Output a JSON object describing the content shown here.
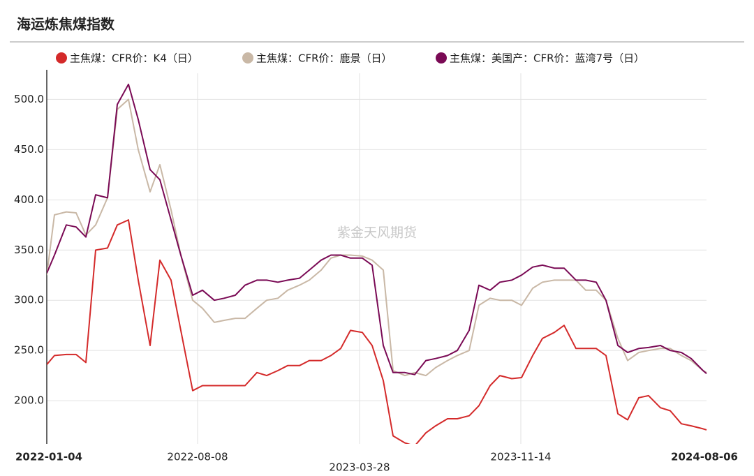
{
  "chart_data": {
    "type": "line",
    "title": "海运炼焦煤指数",
    "watermark": "紫金天风期货",
    "x": [
      "2022-01-04",
      "2022-01-15",
      "2022-02-01",
      "2022-02-15",
      "2022-03-01",
      "2022-03-15",
      "2022-04-01",
      "2022-04-15",
      "2022-05-01",
      "2022-05-15",
      "2022-06-01",
      "2022-06-15",
      "2022-07-01",
      "2022-07-15",
      "2022-08-01",
      "2022-08-15",
      "2022-09-01",
      "2022-09-15",
      "2022-10-01",
      "2022-10-15",
      "2022-11-01",
      "2022-11-15",
      "2022-12-01",
      "2022-12-15",
      "2023-01-01",
      "2023-01-15",
      "2023-02-01",
      "2023-02-15",
      "2023-03-01",
      "2023-03-15",
      "2023-04-01",
      "2023-04-15",
      "2023-05-01",
      "2023-05-15",
      "2023-06-01",
      "2023-06-15",
      "2023-07-01",
      "2023-07-15",
      "2023-08-01",
      "2023-08-15",
      "2023-09-01",
      "2023-09-15",
      "2023-10-01",
      "2023-10-15",
      "2023-11-01",
      "2023-11-15",
      "2023-12-01",
      "2023-12-15",
      "2024-01-01",
      "2024-01-15",
      "2024-02-01",
      "2024-02-15",
      "2024-03-01",
      "2024-03-15",
      "2024-04-01",
      "2024-04-15",
      "2024-05-01",
      "2024-05-15",
      "2024-06-01",
      "2024-06-15",
      "2024-07-01",
      "2024-07-15",
      "2024-08-01",
      "2024-08-06"
    ],
    "series": [
      {
        "name": "主焦煤：CFR价：K4（日）",
        "color": "#d42a2a",
        "values": [
          236,
          245,
          246,
          246,
          238,
          350,
          352,
          375,
          380,
          320,
          255,
          340,
          320,
          270,
          210,
          215,
          215,
          215,
          215,
          215,
          228,
          225,
          230,
          235,
          235,
          240,
          240,
          245,
          252,
          270,
          268,
          255,
          220,
          165,
          158,
          155,
          168,
          175,
          182,
          182,
          185,
          195,
          215,
          225,
          222,
          223,
          245,
          262,
          268,
          275,
          252,
          252,
          252,
          245,
          187,
          181,
          203,
          205,
          193,
          190,
          177,
          175,
          172,
          171
        ]
      },
      {
        "name": "主焦煤：CFR价：鹿景（日）",
        "color": "#c9b8a6",
        "values": [
          325,
          385,
          388,
          387,
          365,
          375,
          402,
          490,
          500,
          450,
          408,
          435,
          390,
          345,
          300,
          292,
          278,
          280,
          282,
          282,
          292,
          300,
          302,
          310,
          315,
          320,
          330,
          342,
          345,
          345,
          344,
          340,
          330,
          230,
          225,
          228,
          225,
          233,
          240,
          245,
          250,
          295,
          302,
          300,
          300,
          295,
          312,
          318,
          320,
          320,
          320,
          310,
          310,
          300,
          262,
          240,
          248,
          250,
          252,
          252,
          245,
          240,
          230,
          228
        ]
      },
      {
        "name": "主焦煤：美国产：CFR价：蓝湾7号（日）",
        "color": "#7a0a55",
        "values": [
          327,
          345,
          375,
          373,
          363,
          405,
          402,
          495,
          515,
          480,
          430,
          420,
          380,
          345,
          305,
          310,
          300,
          302,
          305,
          315,
          320,
          320,
          318,
          320,
          322,
          330,
          340,
          345,
          345,
          342,
          342,
          335,
          255,
          228,
          228,
          226,
          240,
          242,
          245,
          250,
          270,
          315,
          310,
          318,
          320,
          325,
          333,
          335,
          332,
          332,
          320,
          320,
          318,
          300,
          255,
          248,
          252,
          253,
          255,
          250,
          248,
          242,
          230,
          227
        ]
      }
    ],
    "xlim": [
      "2022-01-04",
      "2024-08-06"
    ],
    "xticks": [
      "2022-01-04",
      "2022-08-08",
      "2023-03-28",
      "2023-11-14",
      "2024-08-06"
    ],
    "ylim": [
      157,
      526
    ],
    "yticks": [
      {
        "value": 200,
        "label": "200.0"
      },
      {
        "value": 250,
        "label": "250.0"
      },
      {
        "value": 300,
        "label": "300.0"
      },
      {
        "value": 350,
        "label": "350.0"
      },
      {
        "value": 400,
        "label": "400.0"
      },
      {
        "value": 450,
        "label": "450.0"
      },
      {
        "value": 500,
        "label": "500.0"
      }
    ],
    "grid": true
  }
}
